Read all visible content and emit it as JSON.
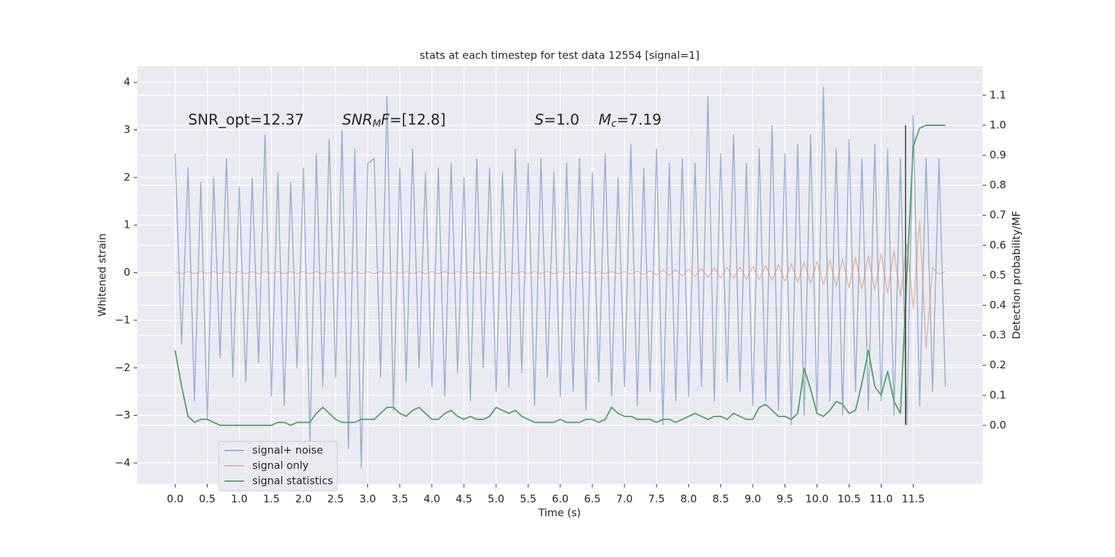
{
  "chart_data": {
    "type": "line",
    "title": "stats at each timestep for test data 12554 [signal=1]",
    "xlabel": "Time (s)",
    "ylabel": "Whitened strain",
    "y2label": "Detection probability/MF",
    "annotations": {
      "snr_opt": "SNR_opt=12.37",
      "snr_mf": {
        "main": "SNR",
        "sub": "M",
        "tail": "F",
        "rest": "=[12.8]"
      },
      "s": {
        "main": "S",
        "rest": "=1.0"
      },
      "mc": {
        "main": "M",
        "sub": "c",
        "rest": "=7.19"
      }
    },
    "vline": {
      "x": 11.38,
      "ymin": -3.2,
      "ymax": 3.1,
      "color": "#333333"
    },
    "xlim": [
      -0.59,
      12.58
    ],
    "ylim": [
      -4.44,
      4.34
    ],
    "y2lim": [
      -0.195,
      1.197
    ],
    "xticks": [
      {
        "value": 0,
        "label": "0.0"
      },
      0.5,
      {
        "value": 1,
        "label": "1.0"
      },
      1.5,
      {
        "value": 2,
        "label": "2.0"
      },
      2.5,
      {
        "value": 3,
        "label": "3.0"
      },
      3.5,
      {
        "value": 4,
        "label": "4.0"
      },
      4.5,
      {
        "value": 5,
        "label": "5.0"
      },
      5.5,
      {
        "value": 6,
        "label": "6.0"
      },
      6.5,
      {
        "value": 7,
        "label": "7.0"
      },
      7.5,
      {
        "value": 8,
        "label": "8.0"
      },
      8.5,
      {
        "value": 9,
        "label": "9.0"
      },
      9.5,
      {
        "value": 10,
        "label": "10.0"
      },
      10.5,
      {
        "value": 11,
        "label": "11.0"
      },
      11.5
    ],
    "yticks": [
      {
        "value": -4,
        "label": "−4"
      },
      {
        "value": -3,
        "label": "−3"
      },
      {
        "value": -2,
        "label": "−2"
      },
      {
        "value": -1,
        "label": "−1"
      },
      0,
      1,
      2,
      3,
      4
    ],
    "y2ticks": [
      {
        "value": 0,
        "label": "0.0"
      },
      0.1,
      0.2,
      0.3,
      0.4,
      0.5,
      0.6,
      0.7,
      0.8,
      0.9,
      {
        "value": 1,
        "label": "1.0"
      },
      1.1
    ],
    "grid": true,
    "legend": "lower left",
    "x": [
      0,
      0.1,
      0.2,
      0.3,
      0.4,
      0.5,
      0.6,
      0.7,
      0.8,
      0.9,
      1,
      1.1,
      1.2,
      1.3,
      1.4,
      1.5,
      1.6,
      1.7,
      1.8,
      1.9,
      2,
      2.1,
      2.2,
      2.3,
      2.4,
      2.5,
      2.6,
      2.7,
      2.8,
      2.9,
      3,
      3.1,
      3.2,
      3.3,
      3.4,
      3.5,
      3.6,
      3.7,
      3.8,
      3.9,
      4,
      4.1,
      4.2,
      4.3,
      4.4,
      4.5,
      4.6,
      4.7,
      4.8,
      4.9,
      5,
      5.1,
      5.2,
      5.3,
      5.4,
      5.5,
      5.6,
      5.7,
      5.8,
      5.9,
      6,
      6.1,
      6.2,
      6.3,
      6.4,
      6.5,
      6.6,
      6.7,
      6.8,
      6.9,
      7,
      7.1,
      7.2,
      7.3,
      7.4,
      7.5,
      7.6,
      7.7,
      7.8,
      7.9,
      8,
      8.1,
      8.2,
      8.3,
      8.4,
      8.5,
      8.6,
      8.7,
      8.8,
      8.9,
      9,
      9.1,
      9.2,
      9.3,
      9.4,
      9.5,
      9.6,
      9.7,
      9.8,
      9.9,
      10,
      10.1,
      10.2,
      10.3,
      10.4,
      10.5,
      10.6,
      10.7,
      10.8,
      10.9,
      11,
      11.1,
      11.2,
      11.3,
      11.4,
      11.5,
      11.6,
      11.7,
      11.8,
      11.9,
      12
    ],
    "series": [
      {
        "name": "signal+ noise",
        "color": "#4c72b0",
        "values": [
          2.5,
          -1.5,
          2.2,
          -2.7,
          1.9,
          -3.1,
          2.0,
          -1.8,
          2.4,
          -2.2,
          1.8,
          -2.3,
          2.0,
          -1.9,
          2.9,
          -2.6,
          2.1,
          -2.8,
          1.9,
          -2.0,
          2.2,
          -3.6,
          2.5,
          -2.4,
          2.8,
          -2.2,
          3.0,
          -3.7,
          2.6,
          -4.1,
          2.3,
          2.4,
          -2.2,
          3.7,
          -2.9,
          2.2,
          -2.3,
          2.6,
          -2.0,
          2.1,
          -2.4,
          2.2,
          -2.6,
          2.3,
          -2.1,
          2.0,
          -2.7,
          2.4,
          -2.0,
          2.2,
          -2.5,
          2.1,
          -2.4,
          2.6,
          -2.1,
          2.3,
          -2.8,
          2.4,
          -2.2,
          2.1,
          -2.6,
          2.3,
          -2.5,
          2.4,
          -2.9,
          2.1,
          -2.3,
          2.5,
          -2.6,
          2.0,
          -2.4,
          2.7,
          -2.8,
          2.2,
          -2.5,
          2.6,
          -3.2,
          2.3,
          -2.7,
          2.4,
          -2.6,
          2.3,
          -2.4,
          3.7,
          -2.7,
          2.5,
          -2.3,
          2.9,
          -2.5,
          2.3,
          -2.8,
          2.6,
          -2.7,
          3.1,
          -2.9,
          2.5,
          -3.2,
          2.7,
          -3.0,
          2.9,
          -2.9,
          3.9,
          -2.7,
          2.6,
          -3.0,
          2.8,
          -2.5,
          2.4,
          -2.9,
          2.7,
          -2.7,
          2.6,
          -3.0,
          2.4,
          -3.2,
          3.3,
          -2.8,
          2.4,
          -2.5,
          2.4,
          -2.4
        ]
      },
      {
        "name": "signal only",
        "color": "#dd8452",
        "values": [
          0.02,
          -0.02,
          0.02,
          -0.02,
          0.02,
          -0.02,
          0.02,
          -0.02,
          0.02,
          -0.02,
          0.02,
          -0.02,
          0.02,
          -0.02,
          0.02,
          -0.02,
          0.02,
          -0.02,
          0.02,
          -0.02,
          0.02,
          -0.02,
          0.02,
          -0.02,
          0.02,
          -0.02,
          0.02,
          -0.02,
          0.02,
          -0.02,
          0.02,
          -0.02,
          0.02,
          -0.02,
          0.02,
          -0.02,
          0.02,
          -0.02,
          0.02,
          -0.02,
          0.02,
          -0.02,
          0.02,
          -0.02,
          0.02,
          -0.02,
          0.02,
          -0.02,
          0.02,
          -0.02,
          0.02,
          -0.02,
          0.02,
          -0.02,
          0.02,
          -0.02,
          0.02,
          -0.02,
          0.02,
          -0.02,
          0.02,
          -0.02,
          0.02,
          -0.02,
          0.02,
          -0.02,
          0.02,
          -0.02,
          0.02,
          -0.02,
          0.02,
          -0.03,
          0.03,
          -0.04,
          0.04,
          -0.05,
          0.05,
          -0.06,
          0.06,
          -0.07,
          0.07,
          -0.08,
          0.09,
          -0.1,
          0.1,
          -0.11,
          0.11,
          -0.12,
          0.12,
          -0.13,
          0.13,
          -0.14,
          0.15,
          -0.16,
          0.17,
          -0.18,
          0.19,
          -0.2,
          0.21,
          -0.22,
          0.23,
          -0.25,
          0.26,
          -0.28,
          0.29,
          -0.31,
          0.32,
          -0.34,
          0.35,
          -0.37,
          0.39,
          -0.42,
          0.45,
          -0.5,
          0.6,
          -0.75,
          1.1,
          -1.6,
          0.1,
          -0.03,
          0.02
        ]
      },
      {
        "name": "signal statistics",
        "color": "#55a868",
        "axis": "y2",
        "values": [
          0.25,
          0.13,
          0.03,
          0.01,
          0.02,
          0.02,
          0.01,
          0.0,
          0.0,
          0.0,
          0.0,
          0.0,
          0.0,
          0.0,
          0.0,
          0.0,
          0.01,
          0.01,
          0.0,
          0.01,
          0.01,
          0.01,
          0.04,
          0.06,
          0.04,
          0.02,
          0.01,
          0.01,
          0.01,
          0.02,
          0.02,
          0.02,
          0.04,
          0.06,
          0.06,
          0.04,
          0.03,
          0.05,
          0.06,
          0.04,
          0.02,
          0.02,
          0.04,
          0.05,
          0.03,
          0.02,
          0.03,
          0.02,
          0.02,
          0.03,
          0.06,
          0.05,
          0.04,
          0.05,
          0.03,
          0.02,
          0.01,
          0.01,
          0.01,
          0.01,
          0.02,
          0.01,
          0.01,
          0.01,
          0.02,
          0.02,
          0.01,
          0.02,
          0.06,
          0.04,
          0.03,
          0.03,
          0.02,
          0.02,
          0.02,
          0.01,
          0.02,
          0.02,
          0.01,
          0.02,
          0.03,
          0.04,
          0.03,
          0.02,
          0.03,
          0.03,
          0.02,
          0.04,
          0.03,
          0.02,
          0.02,
          0.06,
          0.07,
          0.05,
          0.03,
          0.03,
          0.02,
          0.04,
          0.19,
          0.12,
          0.04,
          0.03,
          0.05,
          0.08,
          0.07,
          0.04,
          0.05,
          0.14,
          0.25,
          0.13,
          0.1,
          0.18,
          0.08,
          0.04,
          0.5,
          0.93,
          0.99,
          1.0,
          1.0,
          1.0,
          1.0
        ]
      }
    ]
  }
}
